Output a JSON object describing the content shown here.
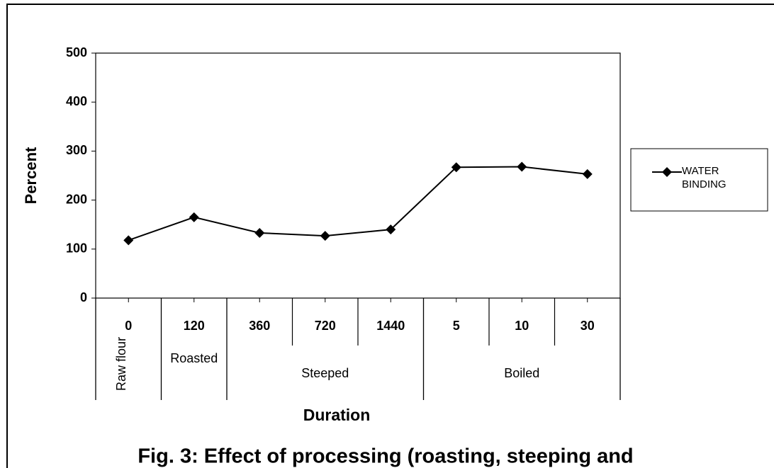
{
  "chart_data": {
    "type": "line",
    "groups": [
      {
        "label": "Raw flour",
        "categories": [
          "0"
        ]
      },
      {
        "label": "Roasted",
        "categories": [
          "120"
        ]
      },
      {
        "label": "Steeped",
        "categories": [
          "360",
          "720",
          "1440"
        ]
      },
      {
        "label": "Boiled",
        "categories": [
          "5",
          "10",
          "30"
        ]
      }
    ],
    "series": [
      {
        "name": "WATER BINDING",
        "color": "#000000",
        "values": [
          118,
          165,
          133,
          127,
          140,
          267,
          268,
          253
        ]
      }
    ],
    "ylim": [
      0,
      500
    ],
    "yticks": [
      0,
      100,
      200,
      300,
      400,
      500
    ],
    "ylabel": "Percent",
    "xlabel": "Duration",
    "caption": "Fig. 3: Effect of processing (roasting, steeping and"
  }
}
